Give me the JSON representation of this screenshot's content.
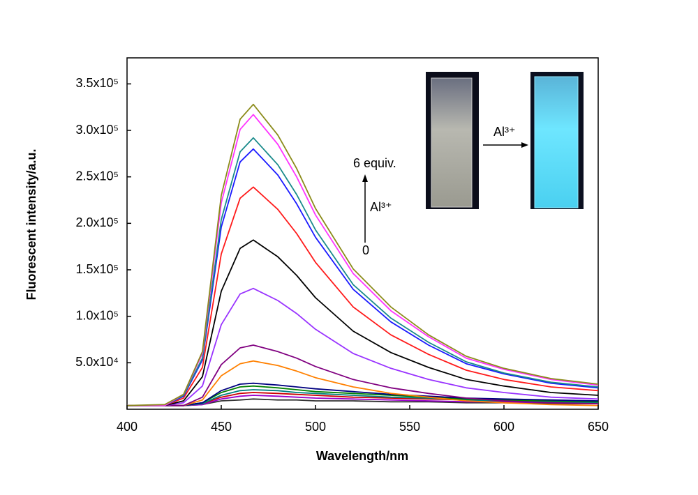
{
  "chart_data": {
    "type": "line",
    "xlabel": "Wavelength/nm",
    "ylabel": "Fluorescent intensity/a.u.",
    "xlim": [
      400,
      650
    ],
    "xticks": [
      400,
      450,
      500,
      550,
      600,
      650
    ],
    "ylim": [
      0,
      378000
    ],
    "yticks": [
      {
        "value": 50000,
        "label": "5.0x10⁴"
      },
      {
        "value": 100000,
        "label": "1.0x10⁵"
      },
      {
        "value": 150000,
        "label": "1.5x10⁵"
      },
      {
        "value": 200000,
        "label": "2.0x10⁵"
      },
      {
        "value": 250000,
        "label": "2.5x10⁵"
      },
      {
        "value": 300000,
        "label": "3.0x10⁵"
      },
      {
        "value": 350000,
        "label": "3.5x10⁵"
      }
    ],
    "annotations": [
      "6 equiv.",
      "Al³⁺",
      "0",
      "Al³⁺"
    ],
    "x": [
      400,
      420,
      430,
      440,
      450,
      460,
      467,
      480,
      490,
      500,
      520,
      540,
      560,
      580,
      600,
      625,
      650
    ],
    "series": [
      {
        "color": "#333333",
        "values": [
          4000,
          4000,
          4000,
          5000,
          9000,
          10000,
          11000,
          10000,
          10000,
          9000,
          9000,
          8000,
          8000,
          7000,
          7000,
          6000,
          6000
        ]
      },
      {
        "color": "#9900cc",
        "values": [
          4000,
          4000,
          4000,
          5000,
          11000,
          14000,
          15000,
          14000,
          13000,
          12000,
          11000,
          10000,
          9000,
          8000,
          8000,
          7000,
          6000
        ]
      },
      {
        "color": "#cc0000",
        "values": [
          4000,
          4000,
          4000,
          6000,
          13000,
          17000,
          18000,
          17000,
          16000,
          15000,
          13000,
          12000,
          11000,
          10000,
          9000,
          8000,
          7000
        ]
      },
      {
        "color": "#008080",
        "values": [
          4000,
          4000,
          4000,
          6000,
          15000,
          20000,
          21000,
          20000,
          18000,
          17000,
          15000,
          13000,
          12000,
          10000,
          9000,
          8000,
          7000
        ]
      },
      {
        "color": "#008000",
        "values": [
          4000,
          4000,
          4000,
          7000,
          18000,
          24000,
          25000,
          23000,
          21000,
          19000,
          17000,
          15000,
          13000,
          11000,
          10000,
          9000,
          8000
        ]
      },
      {
        "color": "#000080",
        "values": [
          4000,
          4000,
          4000,
          7000,
          20000,
          27000,
          28000,
          26000,
          24000,
          22000,
          19000,
          16000,
          14000,
          12000,
          11000,
          10000,
          9000
        ]
      },
      {
        "color": "#ff8000",
        "values": [
          4000,
          4000,
          4000,
          10000,
          36000,
          49000,
          52000,
          47000,
          41000,
          34000,
          24000,
          17000,
          13000,
          9000,
          7000,
          5000,
          4000
        ]
      },
      {
        "color": "#800080",
        "values": [
          4000,
          4000,
          4000,
          13000,
          48000,
          66000,
          69000,
          62000,
          55000,
          46000,
          32000,
          23000,
          17000,
          12000,
          9000,
          7000,
          6000
        ]
      },
      {
        "color": "#9933ff",
        "values": [
          4000,
          4000,
          7000,
          25000,
          91000,
          124000,
          130000,
          117000,
          103000,
          86000,
          60000,
          44000,
          32000,
          23000,
          18000,
          13000,
          11000
        ]
      },
      {
        "color": "#000000",
        "values": [
          4000,
          4000,
          9000,
          35000,
          127000,
          173000,
          182000,
          164000,
          144000,
          120000,
          84000,
          61000,
          45000,
          32000,
          25000,
          18000,
          15000
        ]
      },
      {
        "color": "#ff1a1a",
        "values": [
          4000,
          4000,
          12000,
          45000,
          167000,
          227000,
          239000,
          215000,
          189000,
          158000,
          110000,
          80000,
          59000,
          42000,
          32000,
          24000,
          20000
        ]
      },
      {
        "color": "#1a1aff",
        "values": [
          4000,
          4000,
          14000,
          53000,
          196000,
          266000,
          280000,
          252000,
          221000,
          185000,
          129000,
          94000,
          69000,
          49000,
          38000,
          28000,
          23000
        ]
      },
      {
        "color": "#1a8b8b",
        "values": [
          4000,
          4000,
          15000,
          55000,
          204000,
          277000,
          292000,
          263000,
          231000,
          193000,
          134000,
          98000,
          72000,
          51000,
          39000,
          29000,
          24000
        ]
      },
      {
        "color": "#ff33ff",
        "values": [
          4000,
          4000,
          16000,
          60000,
          222000,
          301000,
          317000,
          285000,
          250000,
          209000,
          146000,
          106000,
          78000,
          55000,
          43000,
          32000,
          26000
        ]
      },
      {
        "color": "#8b8b1a",
        "values": [
          4000,
          5000,
          16000,
          62000,
          230000,
          312000,
          328000,
          295000,
          259000,
          216000,
          151000,
          110000,
          80000,
          57000,
          44000,
          33000,
          27000
        ]
      }
    ]
  }
}
